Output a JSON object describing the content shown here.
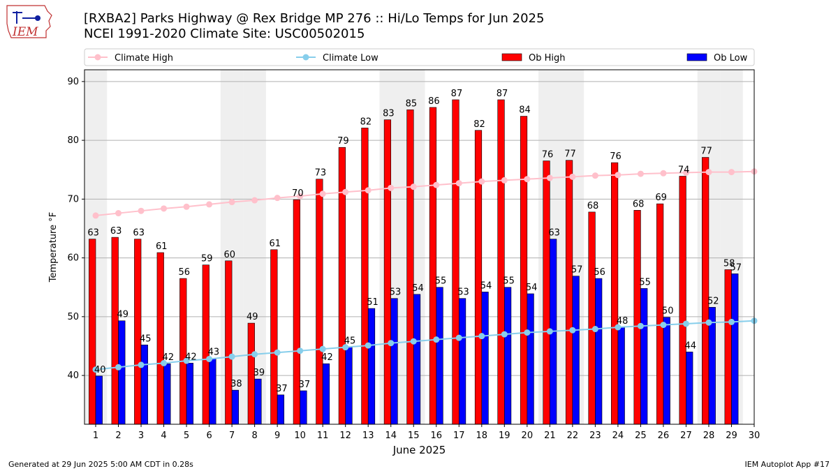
{
  "header": {
    "title_line1": "[RXBA2] Parks Highway @ Rex Bridge MP 276 :: Hi/Lo Temps for Jun 2025",
    "title_line2": "NCEI 1991-2020 Climate Site: USC00502015",
    "logo_text": "IEM"
  },
  "footer": {
    "generated": "Generated at 29 Jun 2025 5:00 AM CDT in 0.28s",
    "app": "IEM Autoplot App #17"
  },
  "colors": {
    "ob_high": "#ff0000",
    "ob_low": "#0000ff",
    "climate_high": "#ffc0cb",
    "climate_low": "#87ceeb",
    "weekend_shade": "#efefef"
  },
  "chart_data": {
    "type": "bar",
    "xlabel": "June 2025",
    "ylabel": "Temperature °F",
    "ylim": [
      31.7,
      92
    ],
    "yticks": [
      40,
      50,
      60,
      70,
      80,
      90
    ],
    "grid": "horizontal",
    "legend_placement": "top",
    "categories": [
      "1",
      "2",
      "3",
      "4",
      "5",
      "6",
      "7",
      "8",
      "9",
      "10",
      "11",
      "12",
      "13",
      "14",
      "15",
      "16",
      "17",
      "18",
      "19",
      "20",
      "21",
      "22",
      "23",
      "24",
      "25",
      "26",
      "27",
      "28",
      "29",
      "30"
    ],
    "weekend_days": [
      1,
      7,
      8,
      14,
      15,
      21,
      22,
      28,
      29
    ],
    "series": [
      {
        "name": "Ob High",
        "kind": "bar",
        "values": [
          63.2,
          63.5,
          63.2,
          60.9,
          56.5,
          58.8,
          59.5,
          48.9,
          61.4,
          69.9,
          73.4,
          78.8,
          82.1,
          83.5,
          85.2,
          85.6,
          86.9,
          81.7,
          86.9,
          84.1,
          76.5,
          76.6,
          67.8,
          76.2,
          68.1,
          69.2,
          73.9,
          77.1,
          58.0,
          null
        ],
        "labels": [
          "63",
          "63",
          "63",
          "61",
          "56",
          "59",
          "60",
          "49",
          "61",
          "70",
          "73",
          "79",
          "82",
          "83",
          "85",
          "86",
          "87",
          "82",
          "87",
          "84",
          "76",
          "77",
          "68",
          "76",
          "68",
          "69",
          "74",
          "77",
          "58",
          ""
        ]
      },
      {
        "name": "Ob Low",
        "kind": "bar",
        "values": [
          39.9,
          49.3,
          45.2,
          42.0,
          42.1,
          42.9,
          37.5,
          39.4,
          36.7,
          37.4,
          42.0,
          44.8,
          51.4,
          53.1,
          53.8,
          55.0,
          53.1,
          54.2,
          55.0,
          53.9,
          63.2,
          56.9,
          56.5,
          48.2,
          54.8,
          49.9,
          44.0,
          51.6,
          57.3,
          null
        ],
        "labels": [
          "40",
          "49",
          "45",
          "42",
          "42",
          "43",
          "38",
          "39",
          "37",
          "37",
          "42",
          "45",
          "51",
          "53",
          "54",
          "55",
          "53",
          "54",
          "55",
          "54",
          "63",
          "57",
          "56",
          "48",
          "55",
          "50",
          "44",
          "52",
          "57",
          ""
        ]
      },
      {
        "name": "Climate High",
        "kind": "line",
        "values": [
          67.2,
          67.6,
          68.0,
          68.4,
          68.7,
          69.1,
          69.5,
          69.8,
          70.2,
          70.5,
          70.9,
          71.2,
          71.5,
          71.9,
          72.1,
          72.4,
          72.7,
          73.0,
          73.2,
          73.4,
          73.6,
          73.8,
          74.0,
          74.1,
          74.3,
          74.4,
          74.5,
          74.6,
          74.6,
          74.7
        ]
      },
      {
        "name": "Climate Low",
        "kind": "line",
        "values": [
          41.0,
          41.4,
          41.8,
          42.1,
          42.5,
          42.8,
          43.2,
          43.6,
          43.9,
          44.2,
          44.5,
          44.8,
          45.1,
          45.5,
          45.8,
          46.1,
          46.4,
          46.7,
          47.0,
          47.3,
          47.5,
          47.7,
          47.9,
          48.2,
          48.4,
          48.6,
          48.8,
          49.0,
          49.1,
          49.3
        ]
      }
    ]
  }
}
